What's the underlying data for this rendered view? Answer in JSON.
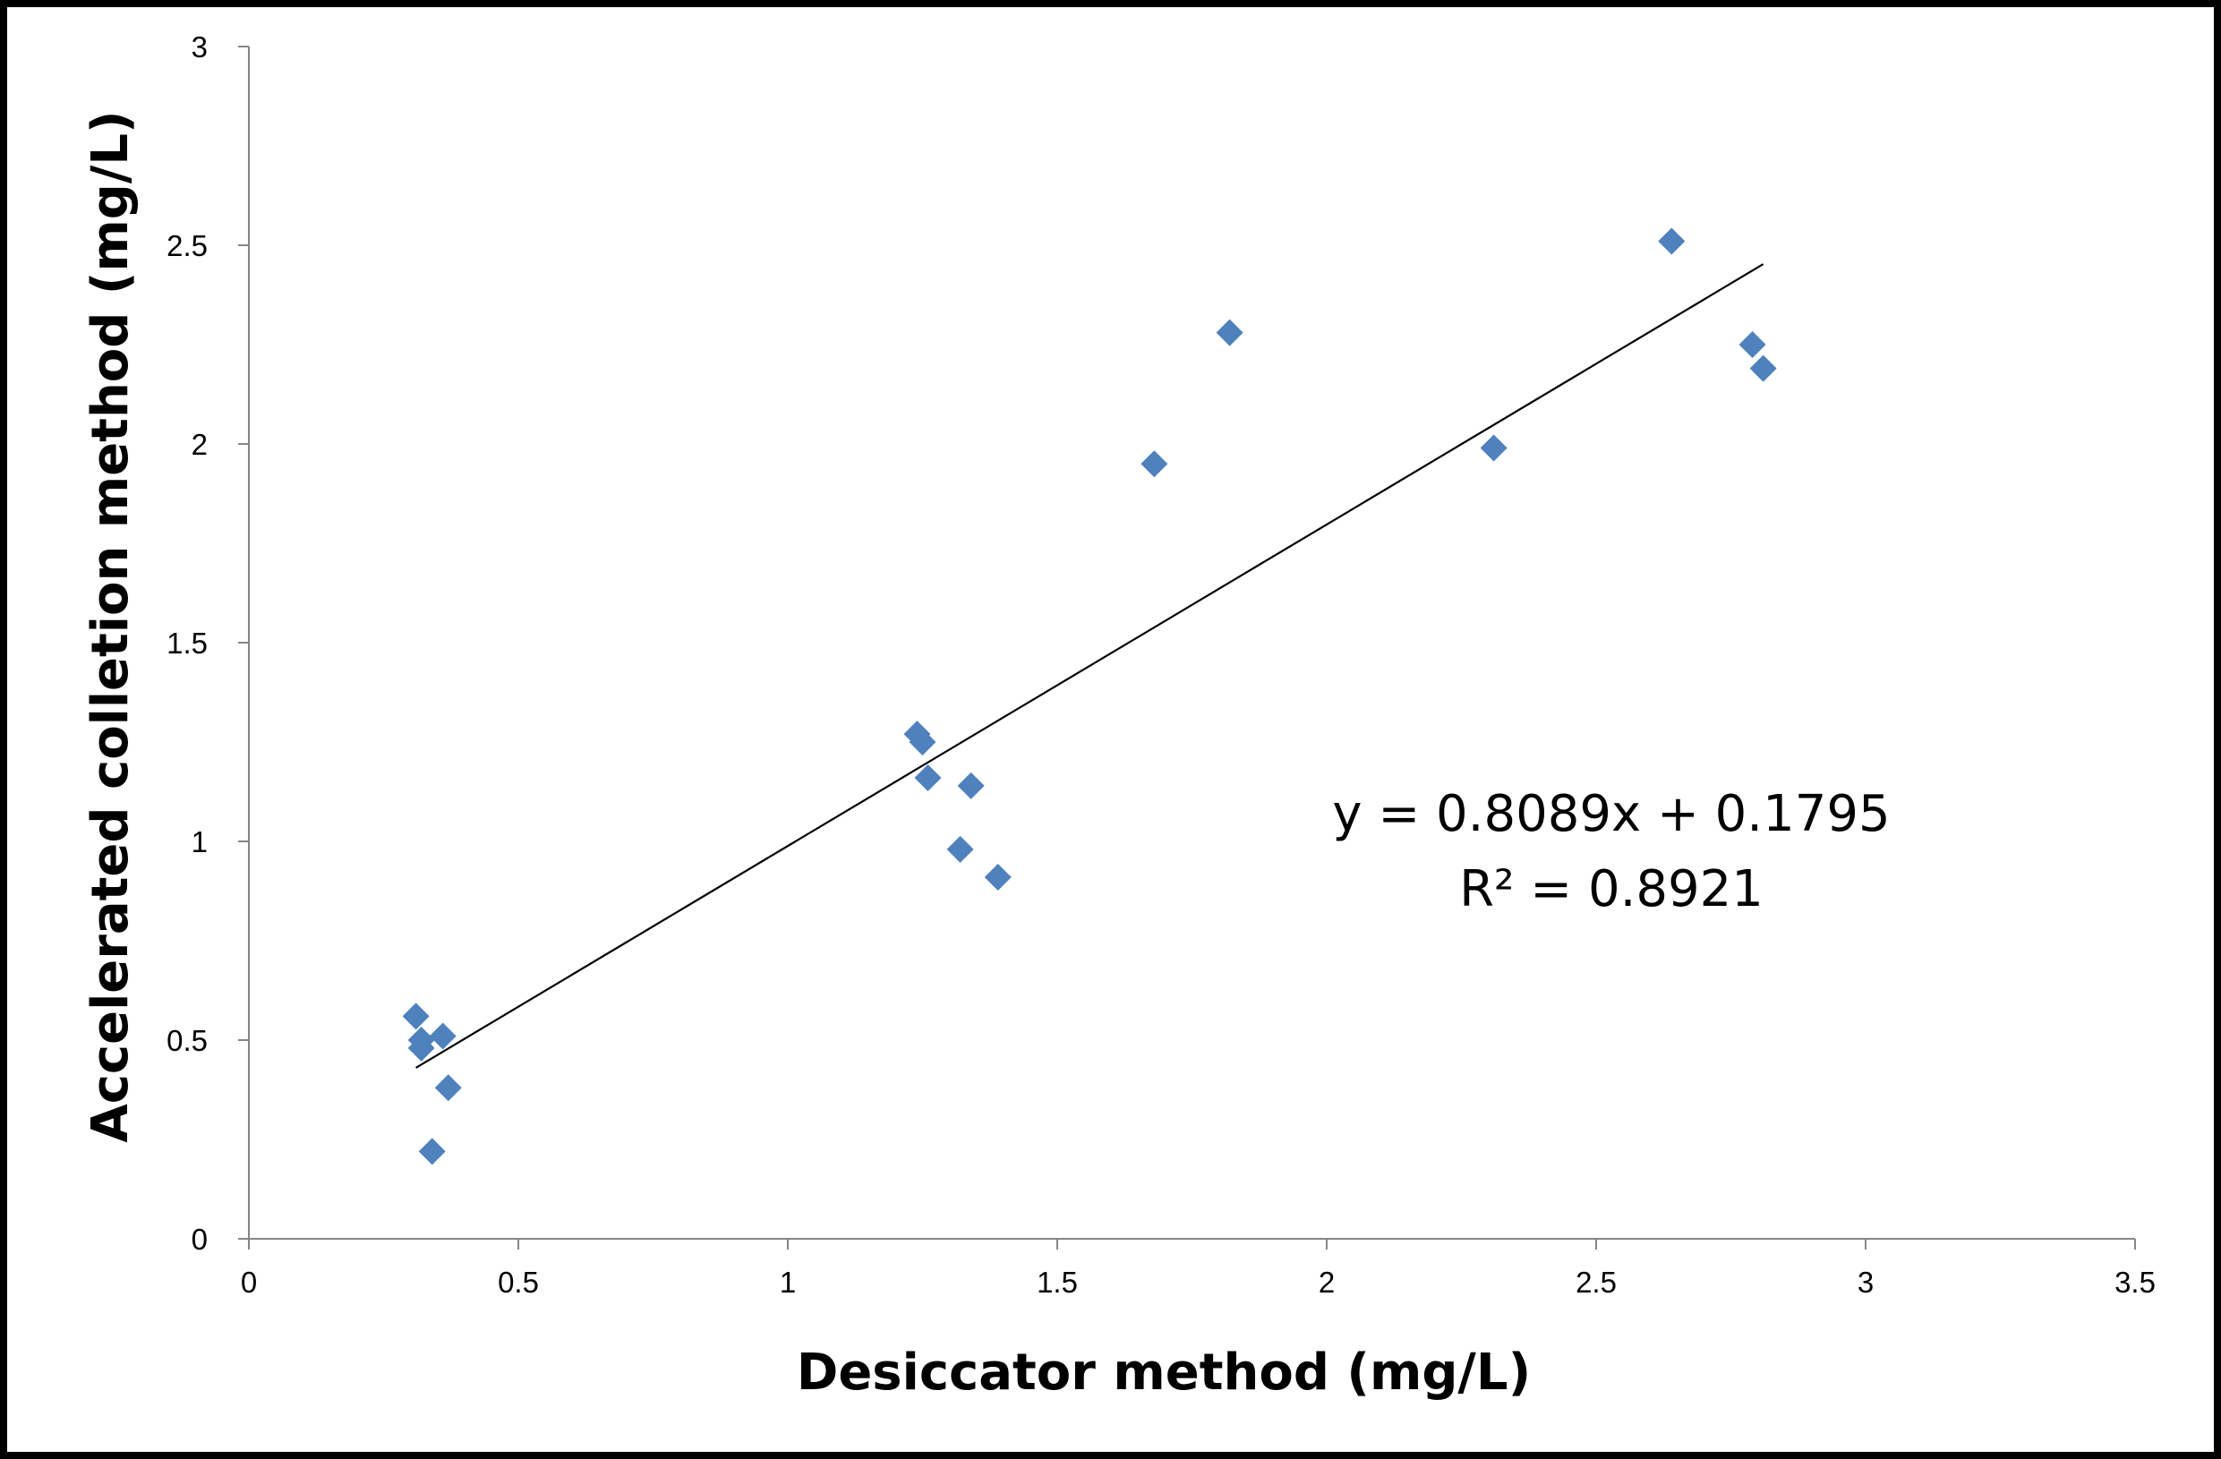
{
  "chart_data": {
    "type": "scatter",
    "title": "",
    "xlabel": "Desiccator method (mg/L)",
    "ylabel": "Accelerated colletion method (mg/L)",
    "xlim": [
      0,
      3.5
    ],
    "ylim": [
      0,
      3
    ],
    "x_ticks": [
      0,
      0.5,
      1,
      1.5,
      2,
      2.5,
      3,
      3.5
    ],
    "y_ticks": [
      0,
      0.5,
      1,
      1.5,
      2,
      2.5,
      3
    ],
    "x_tick_labels": [
      "0",
      "0.5",
      "1",
      "1.5",
      "2",
      "2.5",
      "3",
      "3.5"
    ],
    "y_tick_labels": [
      "0",
      "0.5",
      "1",
      "1.5",
      "2",
      "2.5",
      "3"
    ],
    "grid": false,
    "legend": "none",
    "marker": "diamond",
    "marker_color": "#4F81BD",
    "series": [
      {
        "points": [
          {
            "x": 0.31,
            "y": 0.56
          },
          {
            "x": 0.32,
            "y": 0.5
          },
          {
            "x": 0.32,
            "y": 0.48
          },
          {
            "x": 0.36,
            "y": 0.51
          },
          {
            "x": 0.37,
            "y": 0.38
          },
          {
            "x": 0.34,
            "y": 0.22
          },
          {
            "x": 1.24,
            "y": 1.27
          },
          {
            "x": 1.25,
            "y": 1.25
          },
          {
            "x": 1.26,
            "y": 1.16
          },
          {
            "x": 1.34,
            "y": 1.14
          },
          {
            "x": 1.32,
            "y": 0.98
          },
          {
            "x": 1.39,
            "y": 0.91
          },
          {
            "x": 1.68,
            "y": 1.95
          },
          {
            "x": 1.82,
            "y": 2.28
          },
          {
            "x": 2.31,
            "y": 1.99
          },
          {
            "x": 2.64,
            "y": 2.51
          },
          {
            "x": 2.79,
            "y": 2.25
          },
          {
            "x": 2.81,
            "y": 2.19
          }
        ]
      }
    ],
    "trendline": {
      "slope": 0.8089,
      "intercept": 0.1795,
      "x_range": [
        0.31,
        2.81
      ],
      "color": "#000000"
    },
    "annotations": {
      "equation": "y = 0.8089x + 0.1795",
      "r_squared": "R² = 0.8921"
    }
  }
}
